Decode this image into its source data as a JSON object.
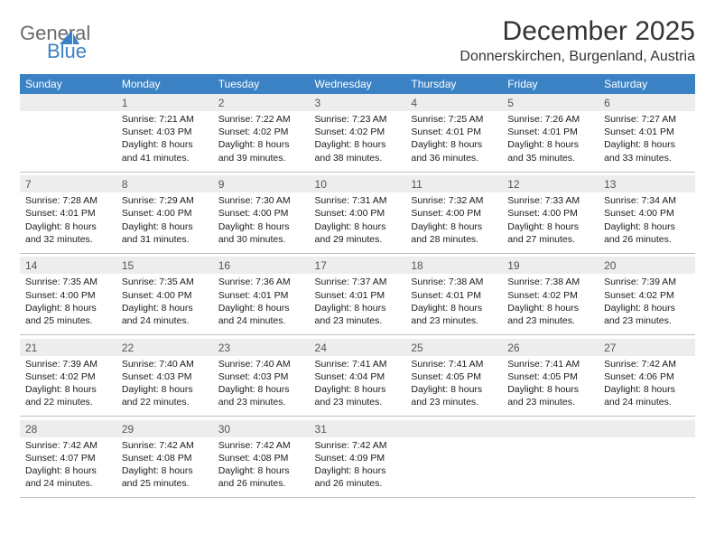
{
  "logo": {
    "word1": "General",
    "word2": "Blue"
  },
  "title": "December 2025",
  "location": "Donnerskirchen, Burgenland, Austria",
  "columns": [
    "Sunday",
    "Monday",
    "Tuesday",
    "Wednesday",
    "Thursday",
    "Friday",
    "Saturday"
  ],
  "header_bg": "#3b82c4",
  "header_fg": "#ffffff",
  "daynum_bg": "#ededed",
  "row_border": "#bfbfbf",
  "weeks": [
    {
      "days": [
        {
          "num": "",
          "lines": []
        },
        {
          "num": "1",
          "lines": [
            "Sunrise: 7:21 AM",
            "Sunset: 4:03 PM",
            "Daylight: 8 hours and 41 minutes."
          ]
        },
        {
          "num": "2",
          "lines": [
            "Sunrise: 7:22 AM",
            "Sunset: 4:02 PM",
            "Daylight: 8 hours and 39 minutes."
          ]
        },
        {
          "num": "3",
          "lines": [
            "Sunrise: 7:23 AM",
            "Sunset: 4:02 PM",
            "Daylight: 8 hours and 38 minutes."
          ]
        },
        {
          "num": "4",
          "lines": [
            "Sunrise: 7:25 AM",
            "Sunset: 4:01 PM",
            "Daylight: 8 hours and 36 minutes."
          ]
        },
        {
          "num": "5",
          "lines": [
            "Sunrise: 7:26 AM",
            "Sunset: 4:01 PM",
            "Daylight: 8 hours and 35 minutes."
          ]
        },
        {
          "num": "6",
          "lines": [
            "Sunrise: 7:27 AM",
            "Sunset: 4:01 PM",
            "Daylight: 8 hours and 33 minutes."
          ]
        }
      ]
    },
    {
      "days": [
        {
          "num": "7",
          "lines": [
            "Sunrise: 7:28 AM",
            "Sunset: 4:01 PM",
            "Daylight: 8 hours and 32 minutes."
          ]
        },
        {
          "num": "8",
          "lines": [
            "Sunrise: 7:29 AM",
            "Sunset: 4:00 PM",
            "Daylight: 8 hours and 31 minutes."
          ]
        },
        {
          "num": "9",
          "lines": [
            "Sunrise: 7:30 AM",
            "Sunset: 4:00 PM",
            "Daylight: 8 hours and 30 minutes."
          ]
        },
        {
          "num": "10",
          "lines": [
            "Sunrise: 7:31 AM",
            "Sunset: 4:00 PM",
            "Daylight: 8 hours and 29 minutes."
          ]
        },
        {
          "num": "11",
          "lines": [
            "Sunrise: 7:32 AM",
            "Sunset: 4:00 PM",
            "Daylight: 8 hours and 28 minutes."
          ]
        },
        {
          "num": "12",
          "lines": [
            "Sunrise: 7:33 AM",
            "Sunset: 4:00 PM",
            "Daylight: 8 hours and 27 minutes."
          ]
        },
        {
          "num": "13",
          "lines": [
            "Sunrise: 7:34 AM",
            "Sunset: 4:00 PM",
            "Daylight: 8 hours and 26 minutes."
          ]
        }
      ]
    },
    {
      "days": [
        {
          "num": "14",
          "lines": [
            "Sunrise: 7:35 AM",
            "Sunset: 4:00 PM",
            "Daylight: 8 hours and 25 minutes."
          ]
        },
        {
          "num": "15",
          "lines": [
            "Sunrise: 7:35 AM",
            "Sunset: 4:00 PM",
            "Daylight: 8 hours and 24 minutes."
          ]
        },
        {
          "num": "16",
          "lines": [
            "Sunrise: 7:36 AM",
            "Sunset: 4:01 PM",
            "Daylight: 8 hours and 24 minutes."
          ]
        },
        {
          "num": "17",
          "lines": [
            "Sunrise: 7:37 AM",
            "Sunset: 4:01 PM",
            "Daylight: 8 hours and 23 minutes."
          ]
        },
        {
          "num": "18",
          "lines": [
            "Sunrise: 7:38 AM",
            "Sunset: 4:01 PM",
            "Daylight: 8 hours and 23 minutes."
          ]
        },
        {
          "num": "19",
          "lines": [
            "Sunrise: 7:38 AM",
            "Sunset: 4:02 PM",
            "Daylight: 8 hours and 23 minutes."
          ]
        },
        {
          "num": "20",
          "lines": [
            "Sunrise: 7:39 AM",
            "Sunset: 4:02 PM",
            "Daylight: 8 hours and 23 minutes."
          ]
        }
      ]
    },
    {
      "days": [
        {
          "num": "21",
          "lines": [
            "Sunrise: 7:39 AM",
            "Sunset: 4:02 PM",
            "Daylight: 8 hours and 22 minutes."
          ]
        },
        {
          "num": "22",
          "lines": [
            "Sunrise: 7:40 AM",
            "Sunset: 4:03 PM",
            "Daylight: 8 hours and 22 minutes."
          ]
        },
        {
          "num": "23",
          "lines": [
            "Sunrise: 7:40 AM",
            "Sunset: 4:03 PM",
            "Daylight: 8 hours and 23 minutes."
          ]
        },
        {
          "num": "24",
          "lines": [
            "Sunrise: 7:41 AM",
            "Sunset: 4:04 PM",
            "Daylight: 8 hours and 23 minutes."
          ]
        },
        {
          "num": "25",
          "lines": [
            "Sunrise: 7:41 AM",
            "Sunset: 4:05 PM",
            "Daylight: 8 hours and 23 minutes."
          ]
        },
        {
          "num": "26",
          "lines": [
            "Sunrise: 7:41 AM",
            "Sunset: 4:05 PM",
            "Daylight: 8 hours and 23 minutes."
          ]
        },
        {
          "num": "27",
          "lines": [
            "Sunrise: 7:42 AM",
            "Sunset: 4:06 PM",
            "Daylight: 8 hours and 24 minutes."
          ]
        }
      ]
    },
    {
      "days": [
        {
          "num": "28",
          "lines": [
            "Sunrise: 7:42 AM",
            "Sunset: 4:07 PM",
            "Daylight: 8 hours and 24 minutes."
          ]
        },
        {
          "num": "29",
          "lines": [
            "Sunrise: 7:42 AM",
            "Sunset: 4:08 PM",
            "Daylight: 8 hours and 25 minutes."
          ]
        },
        {
          "num": "30",
          "lines": [
            "Sunrise: 7:42 AM",
            "Sunset: 4:08 PM",
            "Daylight: 8 hours and 26 minutes."
          ]
        },
        {
          "num": "31",
          "lines": [
            "Sunrise: 7:42 AM",
            "Sunset: 4:09 PM",
            "Daylight: 8 hours and 26 minutes."
          ]
        },
        {
          "num": "",
          "lines": []
        },
        {
          "num": "",
          "lines": []
        },
        {
          "num": "",
          "lines": []
        }
      ]
    }
  ]
}
